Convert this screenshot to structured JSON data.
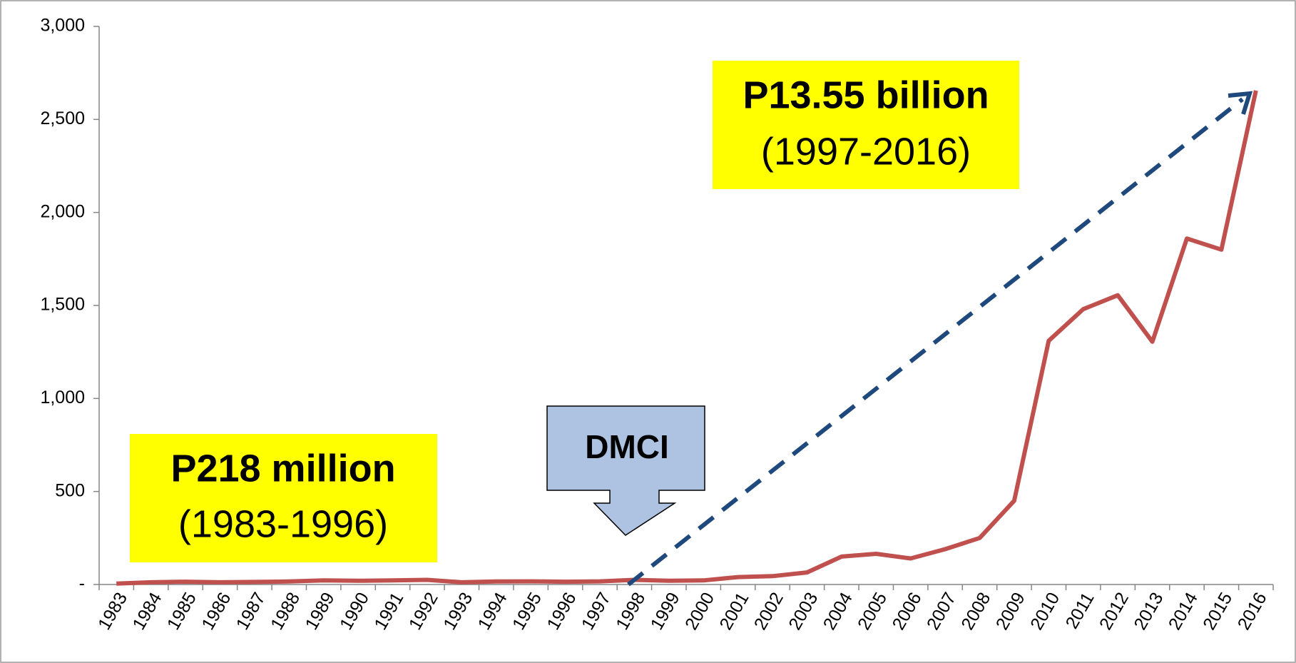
{
  "chart_data": {
    "type": "line",
    "categories": [
      "1983",
      "1984",
      "1985",
      "1986",
      "1987",
      "1988",
      "1989",
      "1990",
      "1991",
      "1992",
      "1993",
      "1994",
      "1995",
      "1996",
      "1997",
      "1998",
      "1999",
      "2000",
      "2001",
      "2002",
      "2003",
      "2004",
      "2005",
      "2006",
      "2007",
      "2008",
      "2009",
      "2010",
      "2011",
      "2012",
      "2013",
      "2014",
      "2015",
      "2016"
    ],
    "series": [
      {
        "color": "#c0504d",
        "values": [
          5,
          12,
          15,
          12,
          14,
          16,
          22,
          20,
          22,
          25,
          12,
          16,
          17,
          15,
          17,
          25,
          20,
          22,
          40,
          45,
          65,
          150,
          165,
          140,
          190,
          250,
          450,
          1310,
          1480,
          1555,
          1305,
          1860,
          1800,
          2655
        ]
      }
    ],
    "ylim": [
      0,
      3000
    ],
    "yticks": [
      {
        "value": 0,
        "label": "-"
      },
      500,
      {
        "value": 1000,
        "label": "1,000"
      },
      {
        "value": 1500,
        "label": "1,500"
      },
      {
        "value": 2000,
        "label": "2,000"
      },
      {
        "value": 2500,
        "label": "2,500"
      },
      {
        "value": 3000,
        "label": "3,000"
      }
    ],
    "grid": false,
    "annotations": {
      "upper": {
        "title": "P13.55 billion",
        "period": "(1997-2016)"
      },
      "lower": {
        "title": "P218 million",
        "period": "(1983-1996)"
      },
      "callout": "DMCI"
    }
  }
}
